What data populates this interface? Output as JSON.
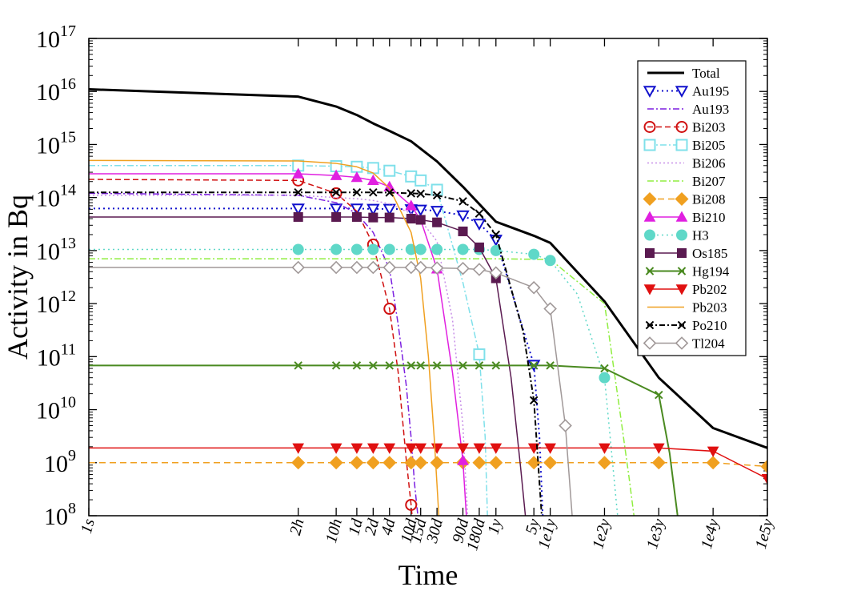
{
  "chart_data": {
    "type": "line",
    "title": "",
    "xlabel": "Time",
    "ylabel": "Activity in Bq",
    "x_scale": "log",
    "y_scale": "log",
    "x_unit": "seconds",
    "xlim": [
      1,
      3156000000000.0
    ],
    "ylim": [
      100000000.0,
      1e+17
    ],
    "grid": false,
    "legend_position": "top-right",
    "x_ticks": [
      {
        "value": 1,
        "label": "1s"
      },
      {
        "value": 7200,
        "label": "2h"
      },
      {
        "value": 36000,
        "label": "10h"
      },
      {
        "value": 86400,
        "label": "1d"
      },
      {
        "value": 172800,
        "label": "2d"
      },
      {
        "value": 345600,
        "label": "4d"
      },
      {
        "value": 864000,
        "label": "10d"
      },
      {
        "value": 1296000,
        "label": "15d"
      },
      {
        "value": 2592000,
        "label": "30d"
      },
      {
        "value": 7776000,
        "label": "90d"
      },
      {
        "value": 15552000,
        "label": "180d"
      },
      {
        "value": 31557600,
        "label": "1y"
      },
      {
        "value": 157788000,
        "label": "5y"
      },
      {
        "value": 315576000,
        "label": "1e1y"
      },
      {
        "value": 3155760000,
        "label": "1e2y"
      },
      {
        "value": 31557600000,
        "label": "1e3y"
      },
      {
        "value": 315576000000,
        "label": "1e4y"
      },
      {
        "value": 3155760000000,
        "label": "1e5y"
      }
    ],
    "y_ticks": [
      {
        "value": 100000000.0,
        "exp": "8"
      },
      {
        "value": 1000000000.0,
        "exp": "9"
      },
      {
        "value": 10000000000.0,
        "exp": "10"
      },
      {
        "value": 100000000000.0,
        "exp": "11"
      },
      {
        "value": 1000000000000.0,
        "exp": "12"
      },
      {
        "value": 10000000000000.0,
        "exp": "13"
      },
      {
        "value": 100000000000000.0,
        "exp": "14"
      },
      {
        "value": 1000000000000000.0,
        "exp": "15"
      },
      {
        "value": 1e+16,
        "exp": "16"
      },
      {
        "value": 1e+17,
        "exp": "17"
      }
    ],
    "y_tick_base": "10",
    "series": [
      {
        "name": "Total",
        "color": "#000000",
        "dash": "",
        "width": 3,
        "marker": "none",
        "x": [
          1,
          7200,
          36000,
          86400,
          172800,
          345600,
          864000,
          2592000,
          7776000,
          31557600,
          157788000,
          315576000,
          3155760000,
          31557600000,
          315576000000,
          3155760000000
        ],
        "y": [
          1.1e+16,
          8000000000000000.0,
          5200000000000000.0,
          3600000000000000.0,
          2500000000000000.0,
          1800000000000000.0,
          1150000000000000.0,
          480000000000000.0,
          160000000000000.0,
          35000000000000.0,
          19000000000000.0,
          14000000000000.0,
          1100000000000.0,
          40000000000.0,
          4500000000.0,
          1900000000.0
        ]
      },
      {
        "name": "Au195",
        "color": "#1010cc",
        "dash": "2,4",
        "width": 2,
        "marker": "triangle-down-open",
        "x": [
          1,
          7200,
          36000,
          86400,
          172800,
          345600,
          864000,
          1296000,
          2592000,
          7776000,
          15552000,
          31557600,
          157788000,
          200000000,
          230000000
        ],
        "y": [
          62000000000000.0,
          62000000000000.0,
          62000000000000.0,
          62000000000000.0,
          61000000000000.0,
          61000000000000.0,
          60000000000000.0,
          59000000000000.0,
          56000000000000.0,
          46000000000000.0,
          32000000000000.0,
          16000000000000.0,
          70000000000.0,
          3000000000.0,
          100000000.0
        ],
        "marker_idx": [
          1,
          2,
          3,
          4,
          5,
          6,
          7,
          8,
          9,
          10,
          11,
          12
        ]
      },
      {
        "name": "Au193",
        "color": "#7b1fe0",
        "dash": "8,3,2,3",
        "width": 1.5,
        "marker": "none",
        "x": [
          1,
          7200,
          36000,
          86400,
          172800,
          345600,
          500000,
          700000,
          864000,
          1000000,
          1150000
        ],
        "y": [
          120000000000000.0,
          110000000000000.0,
          80000000000000.0,
          50000000000000.0,
          22000000000000.0,
          4500000000000.0,
          400000000000.0,
          30000000000.0,
          3000000000.0,
          400000000.0,
          100000000.0
        ]
      },
      {
        "name": "Bi203",
        "color": "#d01010",
        "dash": "7,4",
        "width": 1.5,
        "marker": "circle-open",
        "x": [
          1,
          7200,
          36000,
          86400,
          172800,
          345600,
          500000,
          700000,
          864000,
          900000
        ],
        "y": [
          220000000000000.0,
          210000000000000.0,
          120000000000000.0,
          55000000000000.0,
          13000000000000.0,
          800000000000.0,
          50000000000.0,
          1200000000.0,
          160000000.0,
          100000000.0
        ],
        "marker_idx": [
          1,
          2,
          4,
          5,
          8
        ]
      },
      {
        "name": "Bi205",
        "color": "#7fe0ea",
        "dash": "8,3,2,3",
        "width": 1.5,
        "marker": "square-open",
        "x": [
          1,
          7200,
          36000,
          86400,
          172800,
          345600,
          864000,
          1296000,
          2592000,
          7776000,
          15552000,
          20000000,
          22000000
        ],
        "y": [
          400000000000000.0,
          400000000000000.0,
          390000000000000.0,
          380000000000000.0,
          360000000000000.0,
          320000000000000.0,
          250000000000000.0,
          210000000000000.0,
          140000000000000.0,
          2500000000000.0,
          110000000000.0,
          3000000000.0,
          100000000.0
        ],
        "marker_idx": [
          1,
          2,
          3,
          4,
          5,
          6,
          7,
          8,
          10
        ]
      },
      {
        "name": "Bi206",
        "color": "#c890e8",
        "dash": "2,3",
        "width": 1.5,
        "marker": "none",
        "x": [
          1,
          7200,
          36000,
          86400,
          172800,
          345600,
          864000,
          1296000,
          2592000,
          5000000,
          7776000,
          9500000
        ],
        "y": [
          110000000000000.0,
          110000000000000.0,
          100000000000000.0,
          95000000000000.0,
          88000000000000.0,
          76000000000000.0,
          50000000000000.0,
          37000000000000.0,
          15000000000000.0,
          500000000000.0,
          5000000000.0,
          100000000.0
        ]
      },
      {
        "name": "Bi207",
        "color": "#90ee40",
        "dash": "8,3,2,3",
        "width": 1.5,
        "marker": "none",
        "x": [
          1,
          31557600,
          315576000,
          3155760000,
          6000000000,
          9000000000,
          11000000000
        ],
        "y": [
          7000000000000.0,
          7000000000000.0,
          6800000000000.0,
          1000000000000.0,
          10000000000.0,
          500000000.0,
          100000000.0
        ]
      },
      {
        "name": "Bi208",
        "color": "#f0a020",
        "dash": "8,5",
        "width": 1.5,
        "marker": "diamond-filled",
        "x": [
          1,
          7200,
          36000,
          86400,
          172800,
          345600,
          864000,
          1296000,
          2592000,
          7776000,
          15552000,
          31557600,
          157788000,
          315576000,
          3155760000,
          31557600000,
          315576000000,
          3155760000000
        ],
        "y": [
          1000000000.0,
          1000000000.0,
          1000000000.0,
          1000000000.0,
          1000000000.0,
          1000000000.0,
          1000000000.0,
          1000000000.0,
          1000000000.0,
          1000000000.0,
          1000000000.0,
          1000000000.0,
          1000000000.0,
          1000000000.0,
          1000000000.0,
          1000000000.0,
          1000000000.0,
          850000000.0
        ],
        "marker_idx": [
          1,
          2,
          3,
          4,
          5,
          6,
          7,
          8,
          9,
          10,
          11,
          12,
          13,
          14,
          15,
          16,
          17
        ]
      },
      {
        "name": "Bi210",
        "color": "#e020e0",
        "dash": "",
        "width": 1.5,
        "marker": "triangle-up-filled",
        "x": [
          1,
          7200,
          36000,
          86400,
          172800,
          345600,
          864000,
          1296000,
          2592000,
          5000000,
          7776000,
          9000000
        ],
        "y": [
          280000000000000.0,
          280000000000000.0,
          260000000000000.0,
          240000000000000.0,
          210000000000000.0,
          160000000000000.0,
          70000000000000.0,
          38000000000000.0,
          4500000000000.0,
          50000000000.0,
          1100000000.0,
          100000000.0
        ],
        "marker_idx": [
          1,
          2,
          3,
          4,
          5,
          6,
          8,
          10
        ]
      },
      {
        "name": "H3",
        "color": "#5fd8c8",
        "dash": "2,4",
        "width": 1.5,
        "marker": "circle-filled",
        "x": [
          1,
          7200,
          36000,
          86400,
          172800,
          345600,
          864000,
          1296000,
          2592000,
          7776000,
          15552000,
          31557600,
          157788000,
          315576000,
          1000000000,
          3155760000,
          5500000000
        ],
        "y": [
          10500000000000.0,
          10500000000000.0,
          10500000000000.0,
          10500000000000.0,
          10500000000000.0,
          10500000000000.0,
          10500000000000.0,
          10500000000000.0,
          10500000000000.0,
          10500000000000.0,
          10500000000000.0,
          10000000000000.0,
          8500000000000.0,
          6500000000000.0,
          1500000000000.0,
          40000000000.0,
          100000000.0
        ],
        "marker_idx": [
          1,
          2,
          3,
          4,
          5,
          6,
          7,
          8,
          9,
          10,
          11,
          12,
          13,
          15
        ]
      },
      {
        "name": "Os185",
        "color": "#5a1a50",
        "dash": "",
        "width": 1.5,
        "marker": "square-filled",
        "x": [
          1,
          7200,
          36000,
          86400,
          172800,
          345600,
          864000,
          1296000,
          2592000,
          7776000,
          15552000,
          31557600,
          60000000,
          90000000,
          110000000
        ],
        "y": [
          43000000000000.0,
          43000000000000.0,
          43000000000000.0,
          43000000000000.0,
          42000000000000.0,
          42000000000000.0,
          40000000000000.0,
          38000000000000.0,
          34000000000000.0,
          23000000000000.0,
          11500000000000.0,
          3000000000000.0,
          40000000000.0,
          800000000.0,
          100000000.0
        ],
        "marker_idx": [
          1,
          2,
          3,
          4,
          5,
          6,
          7,
          8,
          9,
          10,
          11
        ]
      },
      {
        "name": "Hg194",
        "color": "#4a8a20",
        "dash": "",
        "width": 2,
        "marker": "x",
        "x": [
          1,
          7200,
          36000,
          86400,
          172800,
          345600,
          864000,
          1296000,
          2592000,
          7776000,
          15552000,
          31557600,
          157788000,
          315576000,
          3155760000,
          31557600000,
          50000000000,
          70000000000
        ],
        "y": [
          68000000000.0,
          68000000000.0,
          68000000000.0,
          68000000000.0,
          68000000000.0,
          68000000000.0,
          68000000000.0,
          68000000000.0,
          68000000000.0,
          68000000000.0,
          68000000000.0,
          68000000000.0,
          68000000000.0,
          68000000000.0,
          60000000000.0,
          19000000000.0,
          1500000000.0,
          100000000.0
        ],
        "marker_idx": [
          1,
          2,
          3,
          4,
          5,
          6,
          7,
          8,
          9,
          10,
          11,
          12,
          13,
          14,
          15
        ]
      },
      {
        "name": "Pb202",
        "color": "#e01010",
        "dash": "",
        "width": 1.5,
        "marker": "triangle-down-filled",
        "x": [
          1,
          7200,
          36000,
          86400,
          172800,
          345600,
          864000,
          1296000,
          2592000,
          7776000,
          15552000,
          31557600,
          157788000,
          315576000,
          3155760000,
          31557600000,
          315576000000,
          3155760000000
        ],
        "y": [
          1900000000.0,
          1900000000.0,
          1900000000.0,
          1900000000.0,
          1900000000.0,
          1900000000.0,
          1900000000.0,
          1900000000.0,
          1900000000.0,
          1900000000.0,
          1900000000.0,
          1900000000.0,
          1900000000.0,
          1900000000.0,
          1900000000.0,
          1900000000.0,
          1650000000.0,
          500000000.0
        ],
        "marker_idx": [
          1,
          2,
          3,
          4,
          5,
          6,
          7,
          8,
          9,
          10,
          11,
          12,
          13,
          14,
          15,
          16,
          17
        ]
      },
      {
        "name": "Pb203",
        "color": "#f0a020",
        "dash": "",
        "width": 1.5,
        "marker": "none",
        "x": [
          1,
          7200,
          36000,
          86400,
          172800,
          345600,
          864000,
          1296000,
          1800000,
          2300000,
          2800000
        ],
        "y": [
          500000000000000.0,
          490000000000000.0,
          440000000000000.0,
          380000000000000.0,
          290000000000000.0,
          150000000000000.0,
          22000000000000.0,
          3000000000000.0,
          100000000000.0,
          3000000000.0,
          100000000.0
        ]
      },
      {
        "name": "Po210",
        "color": "#000000",
        "dash": "7,3,2,3",
        "width": 2,
        "marker": "x",
        "x": [
          1,
          7200,
          36000,
          86400,
          172800,
          345600,
          864000,
          1296000,
          2592000,
          7776000,
          15552000,
          31557600,
          100000000,
          157788000,
          220000000
        ],
        "y": [
          125000000000000.0,
          125000000000000.0,
          125000000000000.0,
          125000000000000.0,
          125000000000000.0,
          124000000000000.0,
          120000000000000.0,
          118000000000000.0,
          110000000000000.0,
          85000000000000.0,
          50000000000000.0,
          20000000000000.0,
          300000000000.0,
          15000000000.0,
          100000000.0
        ],
        "marker_idx": [
          1,
          2,
          3,
          4,
          5,
          6,
          7,
          8,
          9,
          10,
          11,
          13
        ]
      },
      {
        "name": "Tl204",
        "color": "#a09898",
        "dash": "",
        "width": 1.5,
        "marker": "diamond-open",
        "x": [
          1,
          7200,
          36000,
          86400,
          172800,
          345600,
          864000,
          1296000,
          2592000,
          7776000,
          15552000,
          31557600,
          157788000,
          315576000,
          600000000,
          800000000
        ],
        "y": [
          4800000000000.0,
          4800000000000.0,
          4800000000000.0,
          4800000000000.0,
          4800000000000.0,
          4800000000000.0,
          4800000000000.0,
          4800000000000.0,
          4700000000000.0,
          4600000000000.0,
          4400000000000.0,
          3800000000000.0,
          2000000000000.0,
          800000000000.0,
          5000000000.0,
          100000000.0
        ],
        "marker_idx": [
          1,
          2,
          3,
          4,
          5,
          6,
          7,
          8,
          9,
          10,
          11,
          12,
          13,
          14
        ]
      }
    ]
  }
}
